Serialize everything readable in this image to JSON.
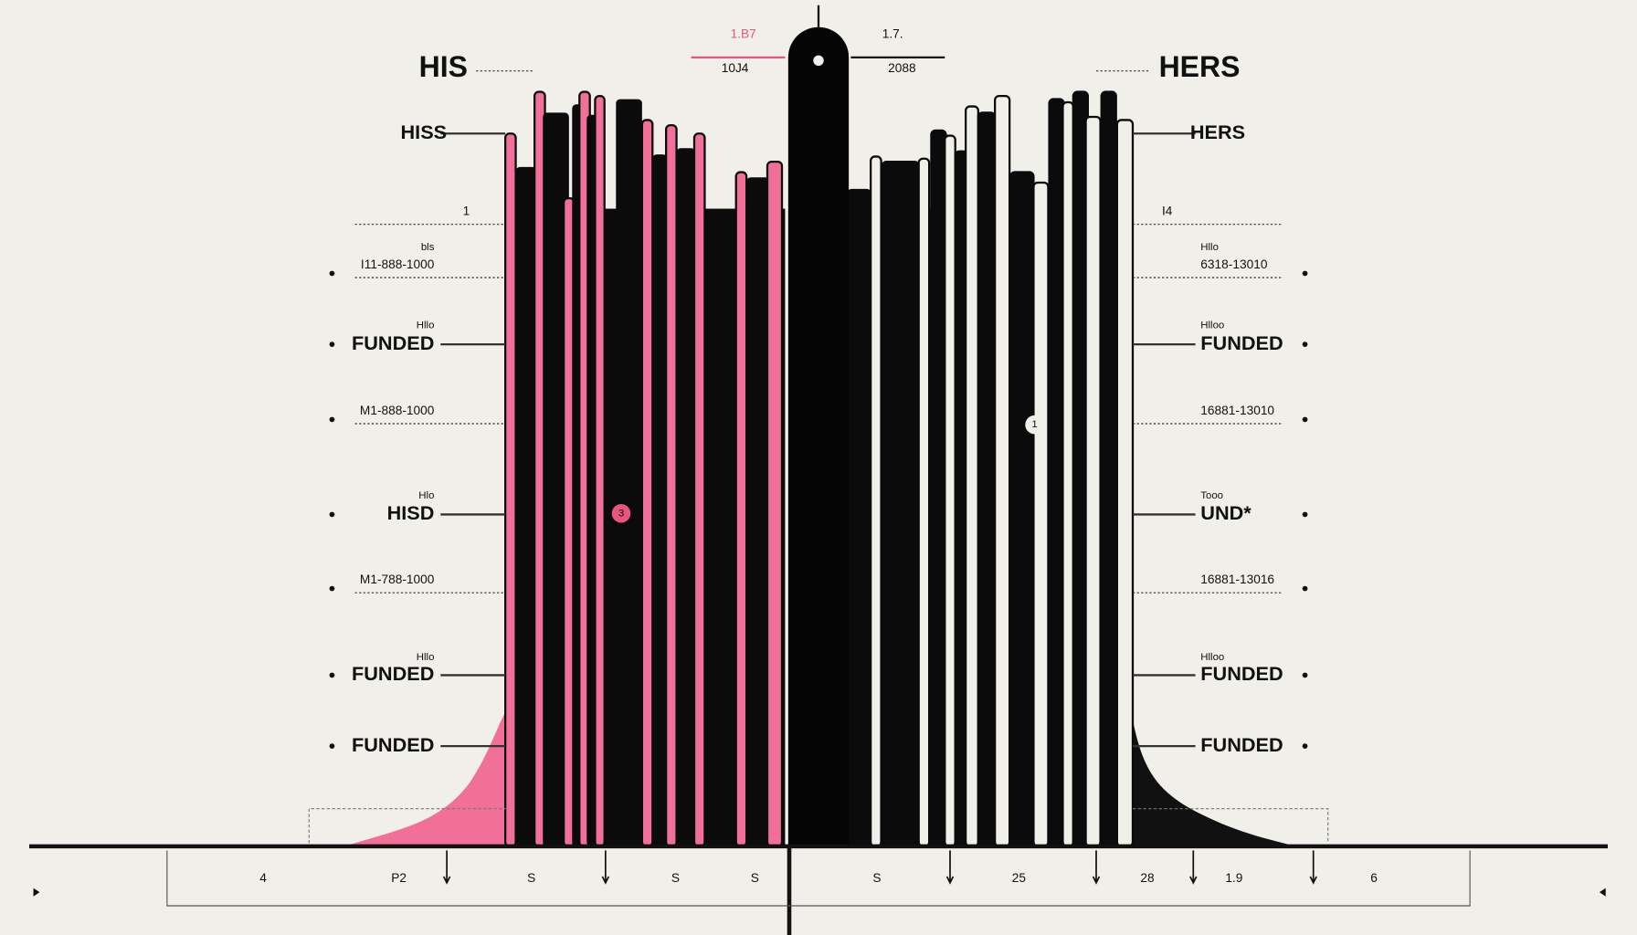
{
  "header": {
    "left_title": "HIS",
    "right_title": "HERS"
  },
  "top": {
    "left_value": "1.B7",
    "left_sub": "10J4",
    "right_value": "1.7.",
    "right_sub": "2088"
  },
  "left_labels": [
    "HISS",
    "1",
    "bls",
    "I11-888-1000",
    "Hllo",
    "FUNDED",
    "M1-888-1000",
    "Hlo",
    "HISD",
    "M1-788-1000",
    "Hllo",
    "FUNDED",
    "FUNDED"
  ],
  "right_labels": [
    "HERS",
    "I4",
    "Hllo",
    "6318-13010",
    "Hlloo",
    "FUNDED",
    "16881-13010",
    "Tooo",
    "UND*",
    "16881-13016",
    "Hlloo",
    "FUNDED",
    "FUNDED"
  ],
  "markers": [
    "3",
    "1"
  ],
  "axis": {
    "tick_labels": [
      "4",
      "P2",
      "S",
      "S",
      "S",
      "S",
      "25",
      "28",
      "1.9",
      "6"
    ]
  }
}
